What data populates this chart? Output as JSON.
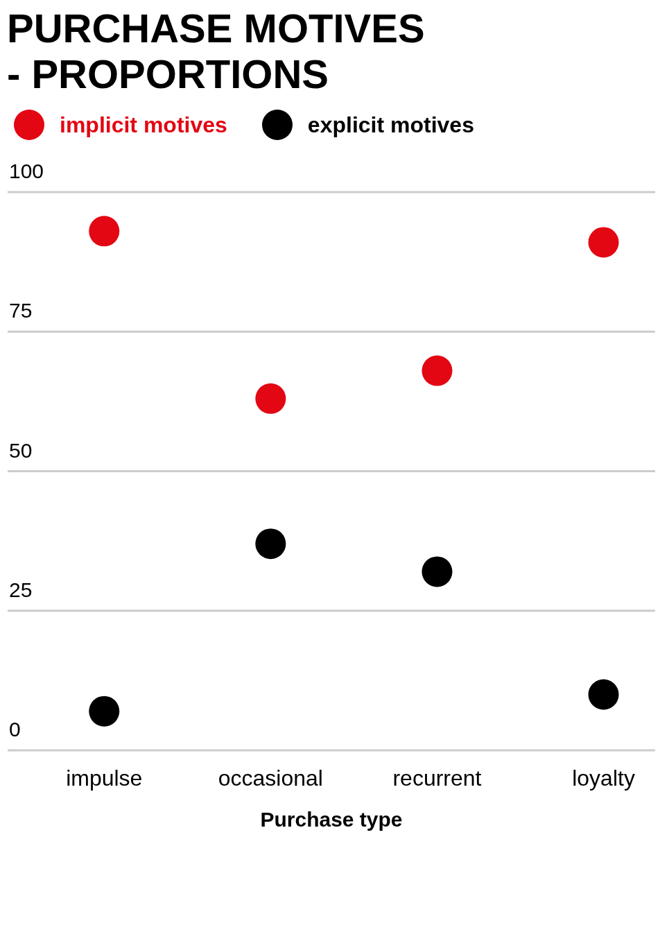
{
  "chart_data": {
    "type": "scatter",
    "title": "PURCHASE MOTIVES\n- PROPORTIONS",
    "xlabel": "Purchase type",
    "categories": [
      "impulse",
      "occasional",
      "recurrent",
      "loyalty"
    ],
    "series": [
      {
        "name": "implicit motives",
        "color": "#e30613",
        "values": [
          93,
          63,
          68,
          91
        ]
      },
      {
        "name": "explicit motives",
        "color": "#000000",
        "values": [
          7,
          37,
          32,
          10
        ]
      }
    ],
    "ylim": [
      0,
      100
    ],
    "yticks": [
      0,
      25,
      50,
      75,
      100
    ],
    "grid": "y",
    "legend": "top left",
    "marker": "circle"
  }
}
